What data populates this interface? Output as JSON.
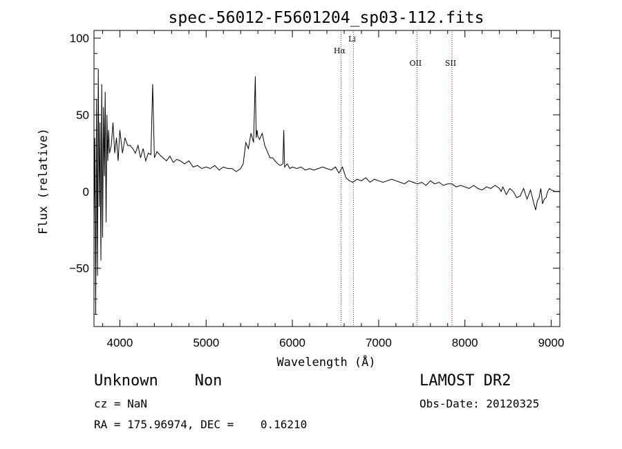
{
  "chart_data": {
    "type": "line",
    "title": "spec-56012-F5601204_sp03-112.fits",
    "xlabel": "Wavelength (Å)",
    "ylabel": "Flux (relative)",
    "xlim": [
      3700,
      9100
    ],
    "ylim": [
      -88,
      105
    ],
    "xticks": [
      4000,
      5000,
      6000,
      7000,
      8000,
      9000
    ],
    "yticks": [
      -50,
      0,
      50,
      100
    ],
    "xtick_labels": [
      "4000",
      "5000",
      "6000",
      "7000",
      "8000",
      "9000"
    ],
    "ytick_labels": [
      "−50",
      "0",
      "50",
      "100"
    ],
    "grid": false,
    "line_color": "#000000",
    "marker_color": "#cc0000",
    "lines": [
      {
        "name": "Hα",
        "x": 6563
      },
      {
        "name": "Li",
        "x": 6708
      },
      {
        "name": "OII",
        "x": 7444
      },
      {
        "name": "SII",
        "x": 7850
      }
    ],
    "series": [
      {
        "name": "",
        "x": [
          3700,
          3710,
          3720,
          3730,
          3740,
          3750,
          3760,
          3770,
          3780,
          3790,
          3800,
          3810,
          3820,
          3830,
          3840,
          3850,
          3860,
          3870,
          3880,
          3900,
          3920,
          3940,
          3960,
          3980,
          4000,
          4030,
          4060,
          4090,
          4120,
          4150,
          4180,
          4210,
          4240,
          4270,
          4300,
          4330,
          4360,
          4380,
          4400,
          4430,
          4460,
          4500,
          4540,
          4580,
          4620,
          4660,
          4700,
          4750,
          4800,
          4850,
          4900,
          4950,
          5000,
          5050,
          5100,
          5150,
          5200,
          5250,
          5300,
          5350,
          5400,
          5430,
          5460,
          5490,
          5520,
          5550,
          5570,
          5580,
          5590,
          5600,
          5620,
          5650,
          5680,
          5710,
          5740,
          5770,
          5800,
          5830,
          5860,
          5890,
          5900,
          5910,
          5940,
          5970,
          6000,
          6050,
          6100,
          6150,
          6200,
          6250,
          6300,
          6350,
          6400,
          6450,
          6500,
          6540,
          6580,
          6620,
          6660,
          6700,
          6750,
          6800,
          6850,
          6900,
          6950,
          7000,
          7050,
          7100,
          7150,
          7200,
          7250,
          7300,
          7350,
          7400,
          7450,
          7500,
          7550,
          7600,
          7650,
          7700,
          7750,
          7800,
          7850,
          7900,
          7950,
          8000,
          8050,
          8100,
          8150,
          8200,
          8250,
          8300,
          8350,
          8400,
          8420,
          8440,
          8480,
          8520,
          8560,
          8600,
          8640,
          8680,
          8720,
          8760,
          8800,
          8820,
          8840,
          8860,
          8880,
          8900,
          8920,
          8940,
          8960,
          8980,
          9000,
          9050,
          9100
        ],
        "values": [
          -20,
          35,
          -80,
          60,
          -55,
          80,
          -10,
          45,
          -45,
          70,
          -30,
          55,
          10,
          65,
          -20,
          50,
          20,
          40,
          25,
          30,
          45,
          25,
          35,
          20,
          40,
          25,
          35,
          30,
          30,
          28,
          25,
          30,
          22,
          28,
          20,
          25,
          24,
          70,
          22,
          26,
          24,
          22,
          20,
          23,
          19,
          21,
          20,
          18,
          20,
          16,
          17,
          15,
          16,
          15,
          17,
          14,
          16,
          15,
          15,
          13,
          15,
          18,
          32,
          28,
          38,
          32,
          75,
          35,
          40,
          36,
          34,
          38,
          30,
          26,
          22,
          22,
          20,
          18,
          17,
          18,
          40,
          16,
          18,
          15,
          16,
          15,
          16,
          14,
          15,
          14,
          15,
          16,
          15,
          14,
          16,
          12,
          16,
          9,
          7,
          6,
          8,
          7,
          9,
          6,
          8,
          7,
          6,
          7,
          8,
          7,
          6,
          5,
          7,
          6,
          5,
          6,
          4,
          7,
          5,
          6,
          4,
          5,
          5,
          3,
          4,
          3,
          2,
          4,
          2,
          1,
          3,
          2,
          4,
          2,
          0,
          3,
          -2,
          2,
          0,
          -4,
          -3,
          2,
          -5,
          1,
          -8,
          -12,
          -6,
          -4,
          2,
          -8,
          -5,
          -4,
          0,
          2,
          1,
          0,
          0
        ]
      }
    ]
  },
  "info": {
    "class_line": "Unknown    Non",
    "cz_line": "cz = NaN",
    "coords_line": "RA = 175.96974, DEC =    0.16210",
    "survey": "LAMOST DR2",
    "obs_date": "Obs-Date: 20120325"
  }
}
